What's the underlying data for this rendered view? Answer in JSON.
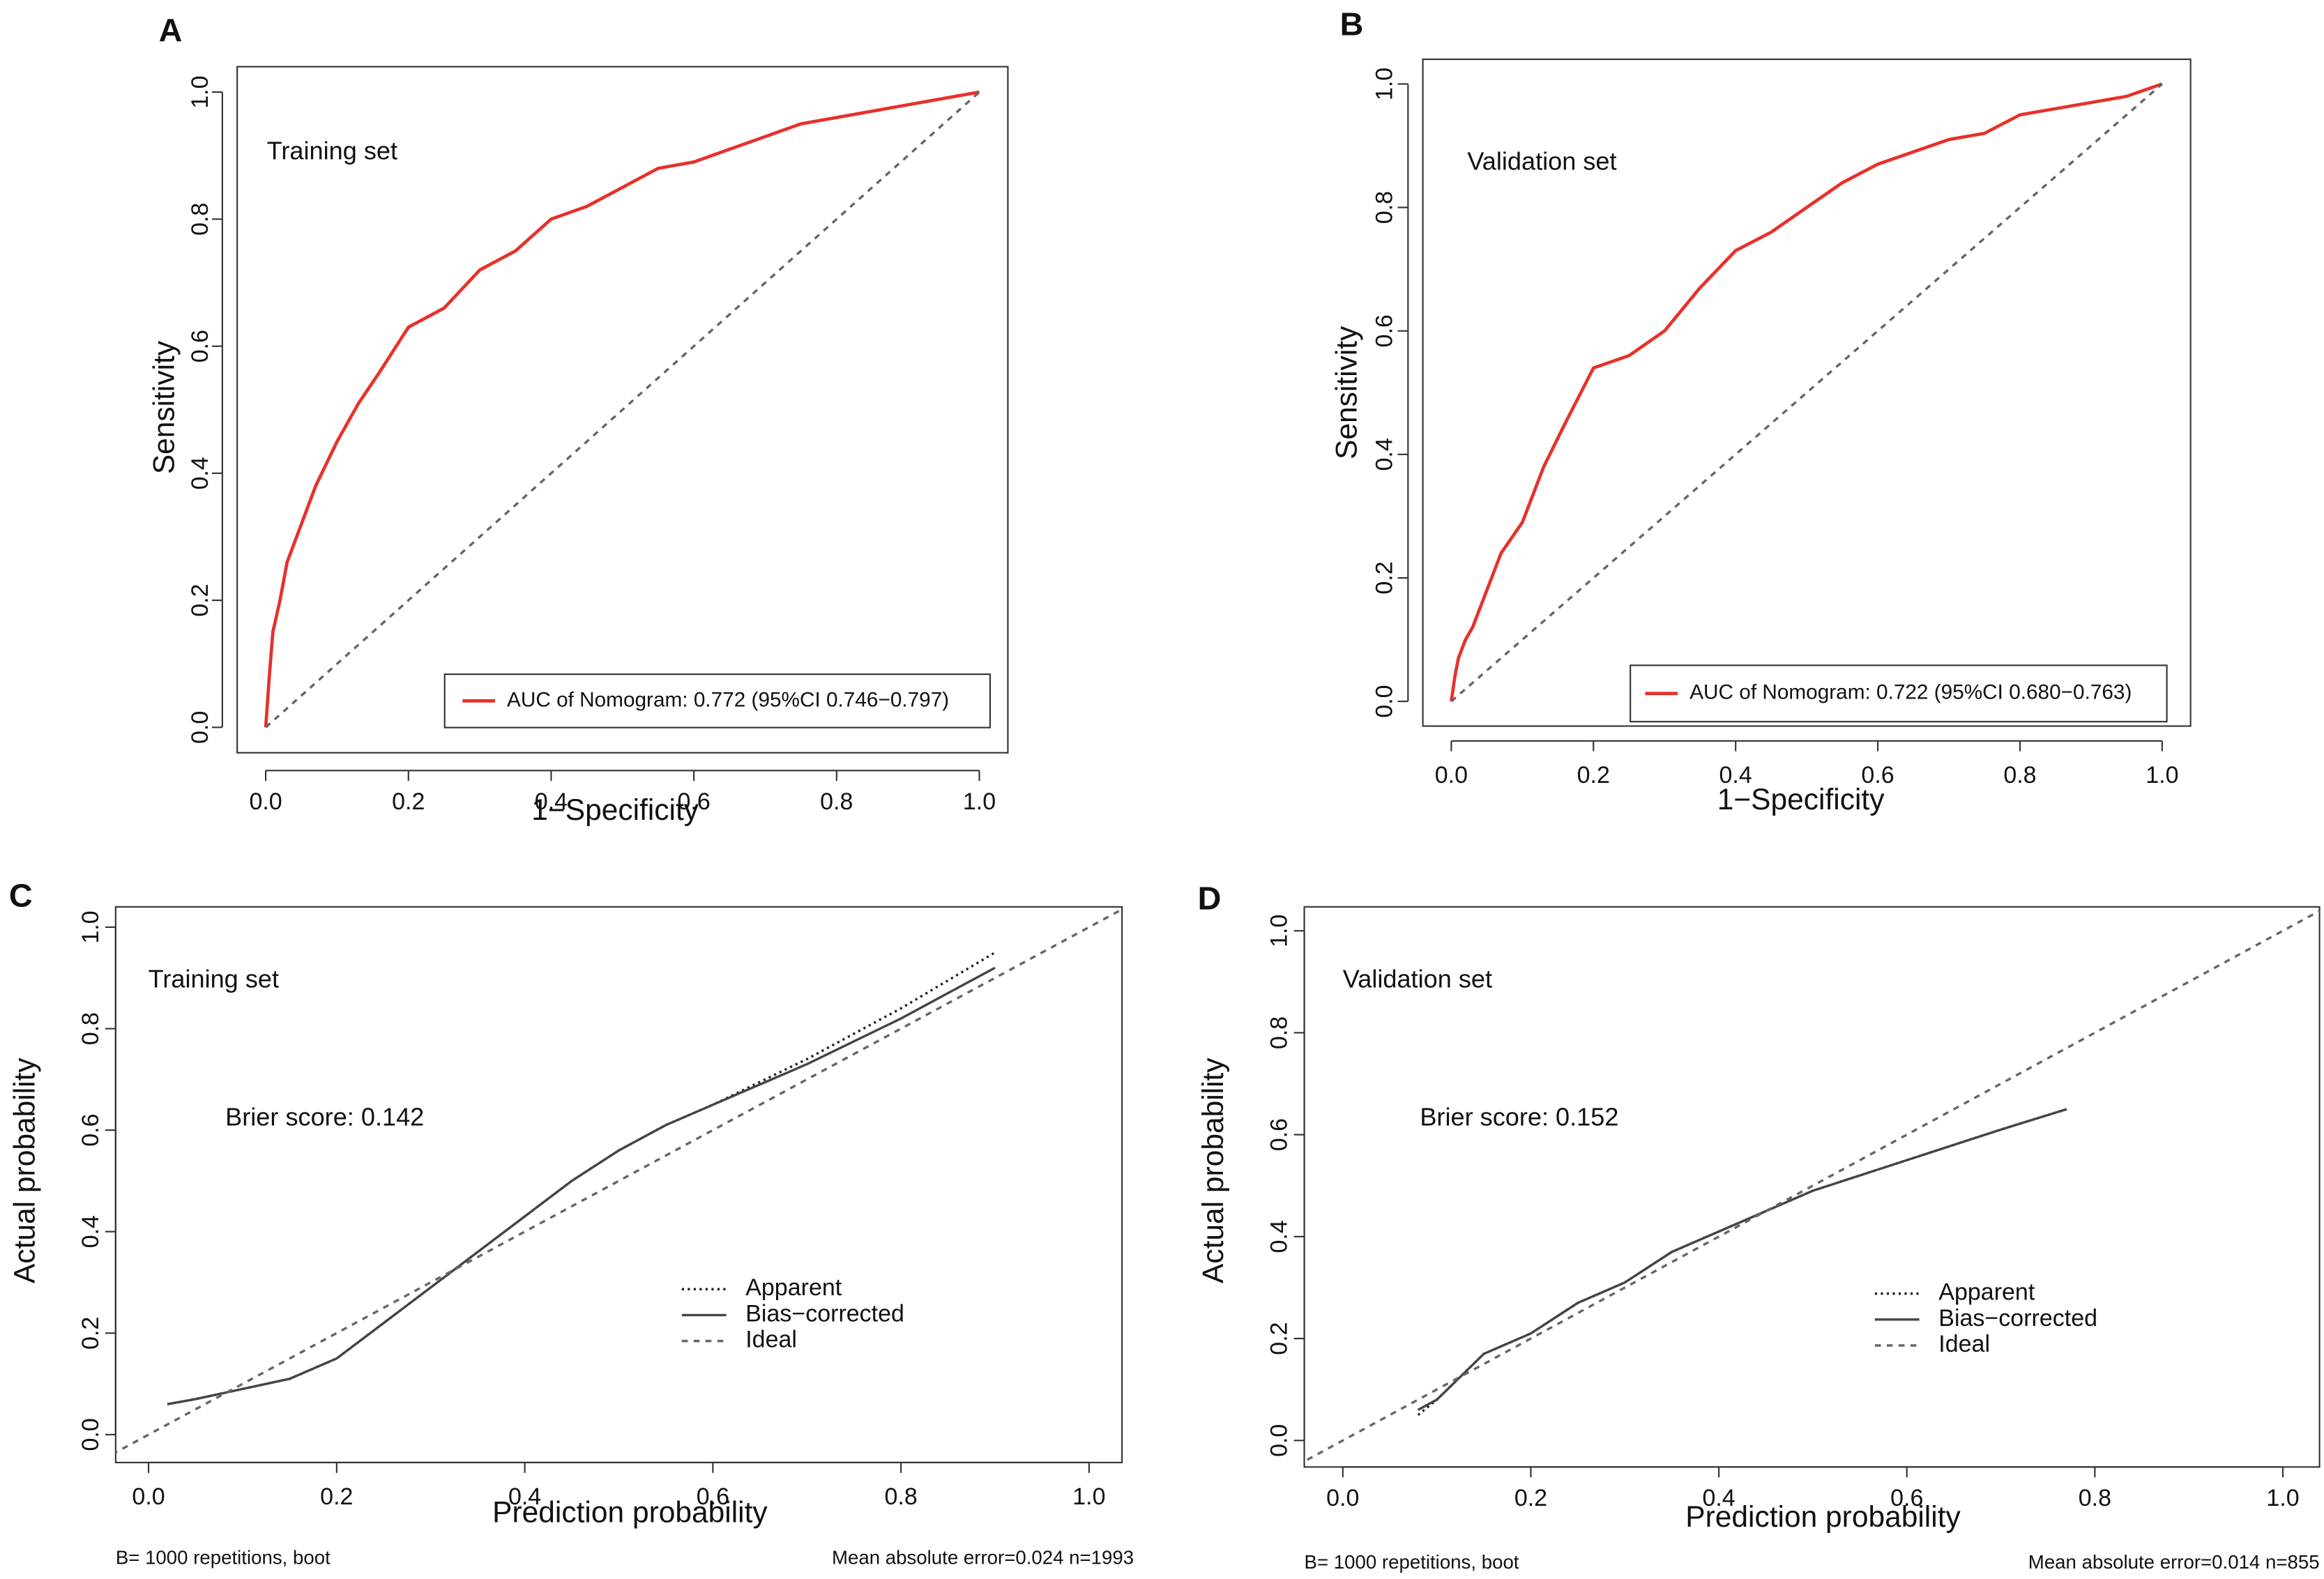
{
  "chart_data": [
    {
      "type": "line",
      "panel": "A",
      "xlabel": "1−Specificity",
      "ylabel": "Sensitivity",
      "annotations": [
        "Training set"
      ],
      "xlim": [
        -0.04,
        1.04
      ],
      "ylim": [
        -0.04,
        1.04
      ],
      "xticks": [
        {
          "value": 0,
          "label": "0.0"
        },
        0.2,
        0.4,
        0.6,
        0.8,
        {
          "value": 1,
          "label": "1.0"
        }
      ],
      "yticks": [
        {
          "value": 0,
          "label": "0.0"
        },
        0.2,
        0.4,
        0.6,
        0.8,
        {
          "value": 1,
          "label": "1.0"
        }
      ],
      "legend_box": true,
      "series": [
        {
          "name": "AUC of Nomogram: 0.772 (95%CI 0.746−0.797)",
          "color": "#e8302a",
          "dash": "solid",
          "x": [
            0,
            0.005,
            0.01,
            0.02,
            0.03,
            0.05,
            0.07,
            0.1,
            0.13,
            0.16,
            0.2,
            0.25,
            0.3,
            0.35,
            0.4,
            0.45,
            0.5,
            0.55,
            0.6,
            0.65,
            0.7,
            0.75,
            0.8,
            0.85,
            0.9,
            0.95,
            1
          ],
          "values": [
            0,
            0.08,
            0.15,
            0.2,
            0.26,
            0.32,
            0.38,
            0.45,
            0.51,
            0.56,
            0.63,
            0.66,
            0.72,
            0.75,
            0.8,
            0.82,
            0.85,
            0.88,
            0.89,
            0.91,
            0.93,
            0.95,
            0.96,
            0.97,
            0.98,
            0.99,
            1
          ]
        },
        {
          "color": "#666666",
          "dash": "dashed",
          "x": [
            0,
            1
          ],
          "values": [
            0,
            1
          ]
        }
      ]
    },
    {
      "type": "line",
      "panel": "B",
      "xlabel": "1−Specificity",
      "ylabel": "Sensitivity",
      "annotations": [
        "Validation set"
      ],
      "xlim": [
        -0.04,
        1.04
      ],
      "ylim": [
        -0.04,
        1.04
      ],
      "xticks": [
        {
          "value": 0,
          "label": "0.0"
        },
        0.2,
        0.4,
        0.6,
        0.8,
        {
          "value": 1,
          "label": "1.0"
        }
      ],
      "yticks": [
        {
          "value": 0,
          "label": "0.0"
        },
        0.2,
        0.4,
        0.6,
        0.8,
        {
          "value": 1,
          "label": "1.0"
        }
      ],
      "legend_box": true,
      "series": [
        {
          "name": "AUC of Nomogram: 0.722 (95%CI 0.680−0.763)",
          "color": "#e8302a",
          "dash": "solid",
          "x": [
            0,
            0.005,
            0.01,
            0.02,
            0.03,
            0.05,
            0.07,
            0.1,
            0.13,
            0.16,
            0.2,
            0.25,
            0.3,
            0.35,
            0.4,
            0.45,
            0.5,
            0.55,
            0.6,
            0.65,
            0.7,
            0.75,
            0.8,
            0.85,
            0.9,
            0.95,
            1
          ],
          "values": [
            0,
            0.04,
            0.07,
            0.1,
            0.12,
            0.18,
            0.24,
            0.29,
            0.38,
            0.45,
            0.54,
            0.56,
            0.6,
            0.67,
            0.73,
            0.76,
            0.8,
            0.84,
            0.87,
            0.89,
            0.91,
            0.92,
            0.95,
            0.96,
            0.97,
            0.98,
            1
          ]
        },
        {
          "color": "#666666",
          "dash": "dashed",
          "x": [
            0,
            1
          ],
          "values": [
            0,
            1
          ]
        }
      ]
    },
    {
      "type": "line",
      "panel": "C",
      "xlabel": "Prediction probability",
      "ylabel": "Actual probability",
      "annotations": [
        "Training set",
        "Brier score: 0.142"
      ],
      "footnotes": [
        "B= 1000 repetitions, boot",
        "Mean absolute error=0.024 n=1993"
      ],
      "xlim": [
        -0.035,
        1.035
      ],
      "ylim": [
        -0.055,
        1.04
      ],
      "xticks": [
        {
          "value": 0,
          "label": "0.0"
        },
        0.2,
        0.4,
        0.6,
        0.8,
        {
          "value": 1,
          "label": "1.0"
        }
      ],
      "yticks": [
        {
          "value": 0,
          "label": "0.0"
        },
        0.2,
        0.4,
        0.6,
        0.8,
        {
          "value": 1,
          "label": "1.0"
        }
      ],
      "legend_box": false,
      "series": [
        {
          "name": "Apparent",
          "color": "#222222",
          "dash": "dotted",
          "x": [
            0.02,
            0.05,
            0.1,
            0.15,
            0.2,
            0.25,
            0.3,
            0.35,
            0.4,
            0.45,
            0.5,
            0.55,
            0.6,
            0.7,
            0.8,
            0.9
          ],
          "values": [
            0.06,
            0.07,
            0.09,
            0.11,
            0.15,
            0.22,
            0.29,
            0.36,
            0.43,
            0.5,
            0.56,
            0.61,
            0.65,
            0.74,
            0.84,
            0.95
          ]
        },
        {
          "name": "Bias−corrected",
          "color": "#444444",
          "dash": "solid",
          "x": [
            0.02,
            0.05,
            0.1,
            0.15,
            0.2,
            0.25,
            0.3,
            0.35,
            0.4,
            0.45,
            0.5,
            0.55,
            0.6,
            0.7,
            0.8,
            0.9
          ],
          "values": [
            0.06,
            0.07,
            0.09,
            0.11,
            0.15,
            0.22,
            0.29,
            0.36,
            0.43,
            0.5,
            0.56,
            0.61,
            0.65,
            0.73,
            0.82,
            0.92
          ]
        },
        {
          "name": "Ideal",
          "color": "#666666",
          "dash": "dashed",
          "x": [
            -0.05,
            1.05
          ],
          "values": [
            -0.05,
            1.05
          ]
        }
      ]
    },
    {
      "type": "line",
      "panel": "D",
      "xlabel": "Prediction probability",
      "ylabel": "Actual probability",
      "annotations": [
        "Validation set",
        "Brier score: 0.152"
      ],
      "footnotes": [
        "B= 1000 repetitions, boot",
        "Mean absolute error=0.014 n=855"
      ],
      "xlim": [
        -0.041,
        1.039
      ],
      "ylim": [
        -0.052,
        1.047
      ],
      "xticks": [
        {
          "value": 0,
          "label": "0.0"
        },
        0.2,
        0.4,
        0.6,
        0.8,
        {
          "value": 1,
          "label": "1.0"
        }
      ],
      "yticks": [
        {
          "value": 0,
          "label": "0.0"
        },
        0.2,
        0.4,
        0.6,
        0.8,
        {
          "value": 1,
          "label": "1.0"
        }
      ],
      "legend_box": false,
      "series": [
        {
          "name": "Apparent",
          "color": "#222222",
          "dash": "dotted",
          "x": [
            0.08,
            0.1,
            0.15,
            0.2,
            0.25,
            0.3,
            0.35,
            0.4,
            0.45,
            0.5,
            0.55,
            0.6,
            0.65,
            0.7,
            0.77
          ],
          "values": [
            0.05,
            0.08,
            0.17,
            0.21,
            0.27,
            0.31,
            0.37,
            0.41,
            0.45,
            0.49,
            0.52,
            0.55,
            0.58,
            0.61,
            0.65
          ]
        },
        {
          "name": "Bias−corrected",
          "color": "#444444",
          "dash": "solid",
          "x": [
            0.08,
            0.1,
            0.15,
            0.2,
            0.25,
            0.3,
            0.35,
            0.4,
            0.45,
            0.5,
            0.55,
            0.6,
            0.65,
            0.7,
            0.77
          ],
          "values": [
            0.06,
            0.08,
            0.17,
            0.21,
            0.27,
            0.31,
            0.37,
            0.41,
            0.45,
            0.49,
            0.52,
            0.55,
            0.58,
            0.61,
            0.65
          ]
        },
        {
          "name": "Ideal",
          "color": "#666666",
          "dash": "dashed",
          "x": [
            -0.06,
            1.06
          ],
          "values": [
            -0.06,
            1.06
          ]
        }
      ]
    }
  ]
}
